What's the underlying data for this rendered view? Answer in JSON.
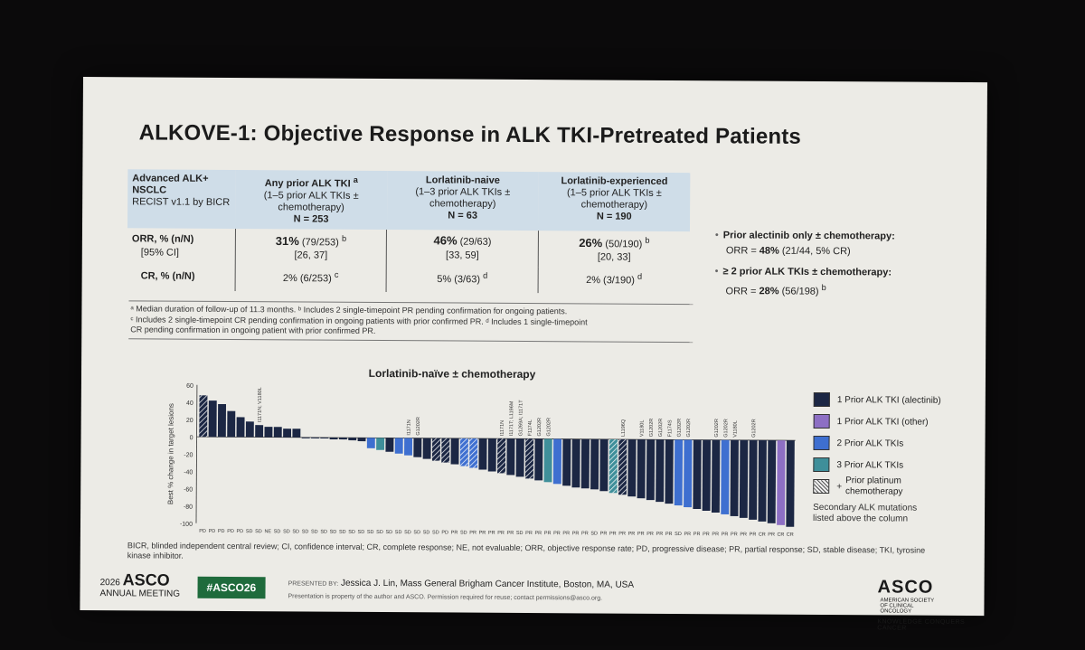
{
  "title": "ALKOVE-1: Objective Response in ALK TKI-Pretreated Patients",
  "table": {
    "header_first": "Advanced ALK+ NSCLC",
    "header_first_sub": "RECIST v1.1 by BICR",
    "columns": [
      {
        "name": "Any prior ALK TKI",
        "sup": "a",
        "desc": "(1–5 prior ALK TKIs ± chemotherapy)",
        "n": "N = 253"
      },
      {
        "name": "Lorlatinib-naive",
        "sup": "",
        "desc": "(1–3 prior ALK TKIs ± chemotherapy)",
        "n": "N = 63"
      },
      {
        "name": "Lorlatinib-experienced",
        "sup": "",
        "desc": "(1–5 prior ALK TKIs ± chemotherapy)",
        "n": "N = 190"
      }
    ],
    "orr_label": "ORR, % (n/N)",
    "ci_label": "[95% CI]",
    "cr_label": "CR, % (n/N)",
    "orr": [
      {
        "pct": "31%",
        "nn": "(79/253)",
        "sup": "b",
        "ci": "[26, 37]"
      },
      {
        "pct": "46%",
        "nn": "(29/63)",
        "sup": "",
        "ci": "[33, 59]"
      },
      {
        "pct": "26%",
        "nn": "(50/190)",
        "sup": "b",
        "ci": "[20, 33]"
      }
    ],
    "cr": [
      {
        "val": "2% (6/253)",
        "sup": "c"
      },
      {
        "val": "5% (3/63)",
        "sup": "d"
      },
      {
        "val": "2% (3/190)",
        "sup": "d"
      }
    ]
  },
  "footnotes": {
    "line1": "ᵃ Median duration of follow-up of 11.3 months. ᵇ Includes 2 single-timepoint PR pending confirmation for ongoing patients.",
    "line2": "ᶜ Includes 2 single-timepoint CR pending confirmation in ongoing patients with prior confirmed PR. ᵈ Includes 1 single-timepoint",
    "line3": "CR pending confirmation in ongoing patient with prior confirmed PR."
  },
  "bullets": {
    "b1_label": "Prior alectinib only ± chemotherapy:",
    "b1_value_pre": "ORR = ",
    "b1_value_bold": "48%",
    "b1_value_post": " (21/44, 5% CR)",
    "b2_label": "≥ 2 prior ALK TKIs ± chemotherapy:",
    "b2_value_pre": "ORR = ",
    "b2_value_bold": "28%",
    "b2_value_post": " (56/198)",
    "b2_sup": "b"
  },
  "chart_data": {
    "type": "bar",
    "title": "Lorlatinib-naïve ± chemotherapy",
    "ylabel": "Best % change in target lesions",
    "ylim": [
      -100,
      60
    ],
    "yticks": [
      60,
      40,
      20,
      0,
      -20,
      -40,
      -60,
      -80,
      -100
    ],
    "categories": [
      "PD",
      "PD",
      "PD",
      "PD",
      "PD",
      "SD",
      "SD",
      "NE",
      "SD",
      "SD",
      "SD",
      "SD",
      "SD",
      "SD",
      "SD",
      "SD",
      "SD",
      "SD",
      "SD",
      "SD",
      "SD",
      "SD",
      "SD",
      "SD",
      "SD",
      "SD",
      "PD",
      "PR",
      "SD",
      "PR",
      "PR",
      "PR",
      "PR",
      "PR",
      "SD",
      "PR",
      "PR",
      "PR",
      "PR",
      "PR",
      "PR",
      "PR",
      "SD",
      "PR",
      "PR",
      "PR",
      "PR",
      "PR",
      "PR",
      "PR",
      "PR",
      "SD",
      "PR",
      "PR",
      "PR",
      "PR",
      "PR",
      "PR",
      "PR",
      "PR",
      "CR",
      "PR",
      "CR",
      "CR"
    ],
    "values": [
      48,
      42,
      38,
      30,
      23,
      18,
      14,
      12,
      12,
      10,
      10,
      -1,
      -1,
      -1,
      -2,
      -2,
      -3,
      -4,
      -12,
      -14,
      -16,
      -18,
      -20,
      -22,
      -24,
      -26,
      -28,
      -30,
      -32,
      -34,
      -36,
      -38,
      -40,
      -42,
      -44,
      -46,
      -48,
      -50,
      -52,
      -54,
      -56,
      -57,
      -58,
      -60,
      -62,
      -64,
      -66,
      -68,
      -70,
      -72,
      -74,
      -76,
      -78,
      -80,
      -82,
      -84,
      -86,
      -88,
      -90,
      -92,
      -94,
      -96,
      -98,
      -100
    ],
    "groups": [
      0,
      0,
      0,
      0,
      0,
      0,
      0,
      0,
      0,
      0,
      0,
      0,
      0,
      0,
      0,
      0,
      0,
      0,
      2,
      3,
      0,
      2,
      2,
      0,
      0,
      0,
      0,
      0,
      2,
      2,
      0,
      0,
      0,
      0,
      0,
      0,
      0,
      3,
      2,
      0,
      0,
      0,
      0,
      0,
      3,
      0,
      0,
      0,
      0,
      0,
      0,
      2,
      2,
      0,
      0,
      0,
      2,
      0,
      0,
      0,
      0,
      0,
      1,
      0
    ],
    "hatched": [
      1,
      0,
      0,
      0,
      0,
      0,
      0,
      0,
      0,
      0,
      0,
      0,
      0,
      0,
      0,
      0,
      0,
      0,
      0,
      0,
      0,
      0,
      0,
      0,
      0,
      1,
      1,
      0,
      1,
      1,
      0,
      0,
      1,
      0,
      0,
      1,
      0,
      0,
      0,
      0,
      0,
      0,
      0,
      0,
      1,
      1,
      0,
      0,
      0,
      0,
      0,
      0,
      0,
      0,
      0,
      0,
      0,
      0,
      0,
      0,
      0,
      0,
      0,
      0
    ],
    "mutation_labels": [
      {
        "bar": 6,
        "text": "I1171N; V1180L"
      },
      {
        "bar": 22,
        "text": "I1171N"
      },
      {
        "bar": 23,
        "text": "G1202R"
      },
      {
        "bar": 32,
        "text": "I1171N"
      },
      {
        "bar": 33,
        "text": "I1171T; L1196M"
      },
      {
        "bar": 34,
        "text": "G1269A; I1171T"
      },
      {
        "bar": 35,
        "text": "F1174L"
      },
      {
        "bar": 36,
        "text": "G1202R"
      },
      {
        "bar": 37,
        "text": "G1202R"
      },
      {
        "bar": 45,
        "text": "L1196Q"
      },
      {
        "bar": 47,
        "text": "V1180L"
      },
      {
        "bar": 48,
        "text": "G1202R"
      },
      {
        "bar": 49,
        "text": "G1202R"
      },
      {
        "bar": 50,
        "text": "F1174S"
      },
      {
        "bar": 51,
        "text": "G1202R"
      },
      {
        "bar": 52,
        "text": "G1202R"
      },
      {
        "bar": 55,
        "text": "G1202R"
      },
      {
        "bar": 56,
        "text": "G1202R"
      },
      {
        "bar": 57,
        "text": "V1180L"
      },
      {
        "bar": 59,
        "text": "G1202R"
      }
    ],
    "grid": false,
    "legend_position": "right"
  },
  "legend": {
    "items": [
      {
        "label": "1 Prior ALK TKI (alectinib)",
        "color": "#1c2744"
      },
      {
        "label": "1 Prior ALK TKI (other)",
        "color": "#8d6fc4"
      },
      {
        "label": "2 Prior ALK TKIs",
        "color": "#3e6fd0"
      },
      {
        "label": "3 Prior ALK TKIs",
        "color": "#3f8f9a"
      }
    ],
    "hatch_label": "Prior platinum chemotherapy",
    "hatch_mark": "+",
    "note": "Secondary ALK mutations listed above the column"
  },
  "abbreviations": "BICR, blinded independent central review; CI, confidence interval; CR, complete response; NE, not evaluable; ORR, objective response rate; PD, progressive disease; PR, partial response; SD, stable disease; TKI, tyrosine kinase inhibitor.",
  "footer": {
    "meeting_year": "2026",
    "meeting_name": "ASCO",
    "meeting_sub": "ANNUAL MEETING",
    "hashtag": "#ASCO26",
    "presented_by": "PRESENTED BY:",
    "presenter": "Jessica J. Lin, Mass General Brigham Cancer Institute, Boston, MA, USA",
    "rights": "Presentation is property of the author and ASCO. Permission required for reuse; contact permissions@asco.org.",
    "logo": "ASCO",
    "logo_sub": "AMERICAN SOCIETY OF CLINICAL ONCOLOGY",
    "tagline": "KNOWLEDGE CONQUERS CANCER"
  }
}
